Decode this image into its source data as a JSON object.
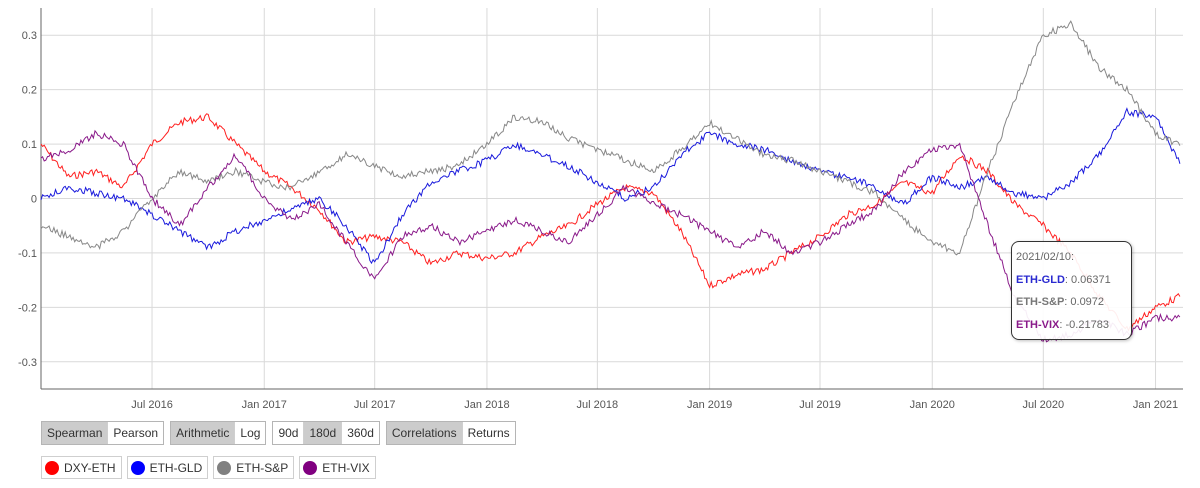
{
  "chart_data": {
    "type": "line",
    "title": "",
    "xlabel": "",
    "ylabel": "",
    "x_range": [
      "2016-01-01",
      "2021-02-15"
    ],
    "ylim": [
      -0.35,
      0.35
    ],
    "y_ticks": [
      "0.3",
      "0.2",
      "0.1",
      "0",
      "-0.1",
      "-0.2",
      "-0.3"
    ],
    "x_ticks": [
      "Jul 2016",
      "Jan 2017",
      "Jul 2017",
      "Jan 2018",
      "Jul 2018",
      "Jan 2019",
      "Jul 2019",
      "Jan 2020",
      "Jul 2020",
      "Jan 2021"
    ],
    "grid": true,
    "series": [
      {
        "name": "DXY-ETH",
        "color": "#ff2020",
        "points": [
          [
            "2016-01-01",
            0.1
          ],
          [
            "2016-02-15",
            0.04
          ],
          [
            "2016-04-01",
            0.05
          ],
          [
            "2016-05-15",
            0.02
          ],
          [
            "2016-07-01",
            0.1
          ],
          [
            "2016-08-15",
            0.14
          ],
          [
            "2016-10-01",
            0.15
          ],
          [
            "2016-11-15",
            0.1
          ],
          [
            "2017-01-01",
            0.05
          ],
          [
            "2017-02-15",
            0.02
          ],
          [
            "2017-04-01",
            -0.02
          ],
          [
            "2017-05-15",
            -0.08
          ],
          [
            "2017-07-01",
            -0.07
          ],
          [
            "2017-08-15",
            -0.08
          ],
          [
            "2017-10-01",
            -0.12
          ],
          [
            "2017-11-15",
            -0.1
          ],
          [
            "2018-01-01",
            -0.11
          ],
          [
            "2018-02-15",
            -0.1
          ],
          [
            "2018-04-01",
            -0.07
          ],
          [
            "2018-05-15",
            -0.05
          ],
          [
            "2018-07-01",
            -0.01
          ],
          [
            "2018-08-15",
            0.02
          ],
          [
            "2018-10-01",
            0.01
          ],
          [
            "2018-11-15",
            -0.06
          ],
          [
            "2019-01-01",
            -0.16
          ],
          [
            "2019-02-15",
            -0.14
          ],
          [
            "2019-04-01",
            -0.13
          ],
          [
            "2019-05-15",
            -0.1
          ],
          [
            "2019-07-01",
            -0.07
          ],
          [
            "2019-08-15",
            -0.03
          ],
          [
            "2019-10-01",
            -0.01
          ],
          [
            "2019-11-15",
            0.03
          ],
          [
            "2020-01-01",
            0.01
          ],
          [
            "2020-02-15",
            0.08
          ],
          [
            "2020-04-01",
            0.05
          ],
          [
            "2020-05-15",
            -0.01
          ],
          [
            "2020-07-01",
            -0.05
          ],
          [
            "2020-08-15",
            -0.1
          ],
          [
            "2020-10-01",
            -0.18
          ],
          [
            "2020-11-15",
            -0.24
          ],
          [
            "2021-01-01",
            -0.2
          ],
          [
            "2021-02-10",
            -0.18
          ]
        ]
      },
      {
        "name": "ETH-GLD",
        "color": "#1a1adc",
        "points": [
          [
            "2016-01-01",
            0.0
          ],
          [
            "2016-02-15",
            0.02
          ],
          [
            "2016-04-01",
            0.01
          ],
          [
            "2016-05-15",
            0.0
          ],
          [
            "2016-07-01",
            -0.03
          ],
          [
            "2016-08-15",
            -0.06
          ],
          [
            "2016-10-01",
            -0.09
          ],
          [
            "2016-11-15",
            -0.06
          ],
          [
            "2017-01-01",
            -0.04
          ],
          [
            "2017-02-15",
            -0.02
          ],
          [
            "2017-04-01",
            0.0
          ],
          [
            "2017-05-15",
            -0.05
          ],
          [
            "2017-07-01",
            -0.12
          ],
          [
            "2017-08-15",
            -0.03
          ],
          [
            "2017-10-01",
            0.03
          ],
          [
            "2017-11-15",
            0.05
          ],
          [
            "2018-01-01",
            0.07
          ],
          [
            "2018-02-15",
            0.1
          ],
          [
            "2018-04-01",
            0.08
          ],
          [
            "2018-05-15",
            0.06
          ],
          [
            "2018-07-01",
            0.03
          ],
          [
            "2018-08-15",
            0.0
          ],
          [
            "2018-10-01",
            0.02
          ],
          [
            "2018-11-15",
            0.08
          ],
          [
            "2019-01-01",
            0.12
          ],
          [
            "2019-02-15",
            0.1
          ],
          [
            "2019-04-01",
            0.09
          ],
          [
            "2019-05-15",
            0.07
          ],
          [
            "2019-07-01",
            0.05
          ],
          [
            "2019-08-15",
            0.04
          ],
          [
            "2019-10-01",
            0.02
          ],
          [
            "2019-11-15",
            -0.01
          ],
          [
            "2020-01-01",
            0.04
          ],
          [
            "2020-02-15",
            0.02
          ],
          [
            "2020-04-01",
            0.04
          ],
          [
            "2020-05-15",
            0.01
          ],
          [
            "2020-07-01",
            0.0
          ],
          [
            "2020-08-15",
            0.03
          ],
          [
            "2020-10-01",
            0.08
          ],
          [
            "2020-11-15",
            0.16
          ],
          [
            "2021-01-01",
            0.15
          ],
          [
            "2021-02-10",
            0.06371
          ]
        ]
      },
      {
        "name": "ETH-S&P",
        "color": "#888888",
        "points": [
          [
            "2016-01-01",
            -0.05
          ],
          [
            "2016-02-15",
            -0.07
          ],
          [
            "2016-04-01",
            -0.09
          ],
          [
            "2016-05-15",
            -0.06
          ],
          [
            "2016-07-01",
            0.0
          ],
          [
            "2016-08-15",
            0.05
          ],
          [
            "2016-10-01",
            0.03
          ],
          [
            "2016-11-15",
            0.05
          ],
          [
            "2017-01-01",
            0.03
          ],
          [
            "2017-02-15",
            0.02
          ],
          [
            "2017-04-01",
            0.05
          ],
          [
            "2017-05-15",
            0.08
          ],
          [
            "2017-07-01",
            0.06
          ],
          [
            "2017-08-15",
            0.04
          ],
          [
            "2017-10-01",
            0.05
          ],
          [
            "2017-11-15",
            0.06
          ],
          [
            "2018-01-01",
            0.1
          ],
          [
            "2018-02-15",
            0.15
          ],
          [
            "2018-04-01",
            0.14
          ],
          [
            "2018-05-15",
            0.11
          ],
          [
            "2018-07-01",
            0.09
          ],
          [
            "2018-08-15",
            0.07
          ],
          [
            "2018-10-01",
            0.05
          ],
          [
            "2018-11-15",
            0.09
          ],
          [
            "2019-01-01",
            0.14
          ],
          [
            "2019-02-15",
            0.11
          ],
          [
            "2019-04-01",
            0.08
          ],
          [
            "2019-05-15",
            0.07
          ],
          [
            "2019-07-01",
            0.05
          ],
          [
            "2019-08-15",
            0.03
          ],
          [
            "2019-10-01",
            0.01
          ],
          [
            "2019-11-15",
            -0.04
          ],
          [
            "2020-01-01",
            -0.08
          ],
          [
            "2020-02-15",
            -0.1
          ],
          [
            "2020-04-01",
            0.05
          ],
          [
            "2020-05-15",
            0.18
          ],
          [
            "2020-07-01",
            0.3
          ],
          [
            "2020-08-15",
            0.32
          ],
          [
            "2020-10-01",
            0.24
          ],
          [
            "2020-11-15",
            0.2
          ],
          [
            "2021-01-01",
            0.12
          ],
          [
            "2021-02-10",
            0.0972
          ]
        ]
      },
      {
        "name": "ETH-VIX",
        "color": "#8a1a8a",
        "points": [
          [
            "2016-01-01",
            0.07
          ],
          [
            "2016-02-15",
            0.09
          ],
          [
            "2016-04-01",
            0.12
          ],
          [
            "2016-05-15",
            0.1
          ],
          [
            "2016-07-01",
            0.0
          ],
          [
            "2016-08-15",
            -0.05
          ],
          [
            "2016-10-01",
            0.02
          ],
          [
            "2016-11-15",
            0.08
          ],
          [
            "2017-01-01",
            0.0
          ],
          [
            "2017-02-15",
            -0.04
          ],
          [
            "2017-04-01",
            -0.01
          ],
          [
            "2017-05-15",
            -0.08
          ],
          [
            "2017-07-01",
            -0.15
          ],
          [
            "2017-08-15",
            -0.07
          ],
          [
            "2017-10-01",
            -0.05
          ],
          [
            "2017-11-15",
            -0.08
          ],
          [
            "2018-01-01",
            -0.06
          ],
          [
            "2018-02-15",
            -0.04
          ],
          [
            "2018-04-01",
            -0.06
          ],
          [
            "2018-05-15",
            -0.08
          ],
          [
            "2018-07-01",
            -0.03
          ],
          [
            "2018-08-15",
            0.02
          ],
          [
            "2018-10-01",
            -0.01
          ],
          [
            "2018-11-15",
            -0.03
          ],
          [
            "2019-01-01",
            -0.06
          ],
          [
            "2019-02-15",
            -0.09
          ],
          [
            "2019-04-01",
            -0.06
          ],
          [
            "2019-05-15",
            -0.1
          ],
          [
            "2019-07-01",
            -0.08
          ],
          [
            "2019-08-15",
            -0.05
          ],
          [
            "2019-10-01",
            -0.02
          ],
          [
            "2019-11-15",
            0.05
          ],
          [
            "2020-01-01",
            0.09
          ],
          [
            "2020-02-15",
            0.1
          ],
          [
            "2020-04-01",
            -0.05
          ],
          [
            "2020-05-15",
            -0.18
          ],
          [
            "2020-07-01",
            -0.26
          ],
          [
            "2020-08-15",
            -0.25
          ],
          [
            "2020-10-01",
            -0.22
          ],
          [
            "2020-11-15",
            -0.25
          ],
          [
            "2021-01-01",
            -0.22
          ],
          [
            "2021-02-10",
            -0.21783
          ]
        ]
      }
    ]
  },
  "controls": {
    "method": [
      "Spearman",
      "Pearson"
    ],
    "scale": [
      "Arithmetic",
      "Log"
    ],
    "window": [
      "90d",
      "180d",
      "360d"
    ],
    "view": [
      "Correlations",
      "Returns"
    ]
  },
  "legend": {
    "items": [
      {
        "label": "DXY-ETH",
        "color": "#ff0000"
      },
      {
        "label": "ETH-GLD",
        "color": "#0000ff"
      },
      {
        "label": "ETH-S&P",
        "color": "#808080"
      },
      {
        "label": "ETH-VIX",
        "color": "#800080"
      }
    ]
  },
  "tooltip": {
    "date": "2021/02/10:",
    "rows": [
      {
        "name": "ETH-GLD",
        "value": ": 0.06371",
        "color": "#2a2ad0"
      },
      {
        "name": "ETH-S&P",
        "value": ": 0.0972",
        "color": "#777777"
      },
      {
        "name": "ETH-VIX",
        "value": ": -0.21783",
        "color": "#8a1a8a"
      }
    ]
  }
}
